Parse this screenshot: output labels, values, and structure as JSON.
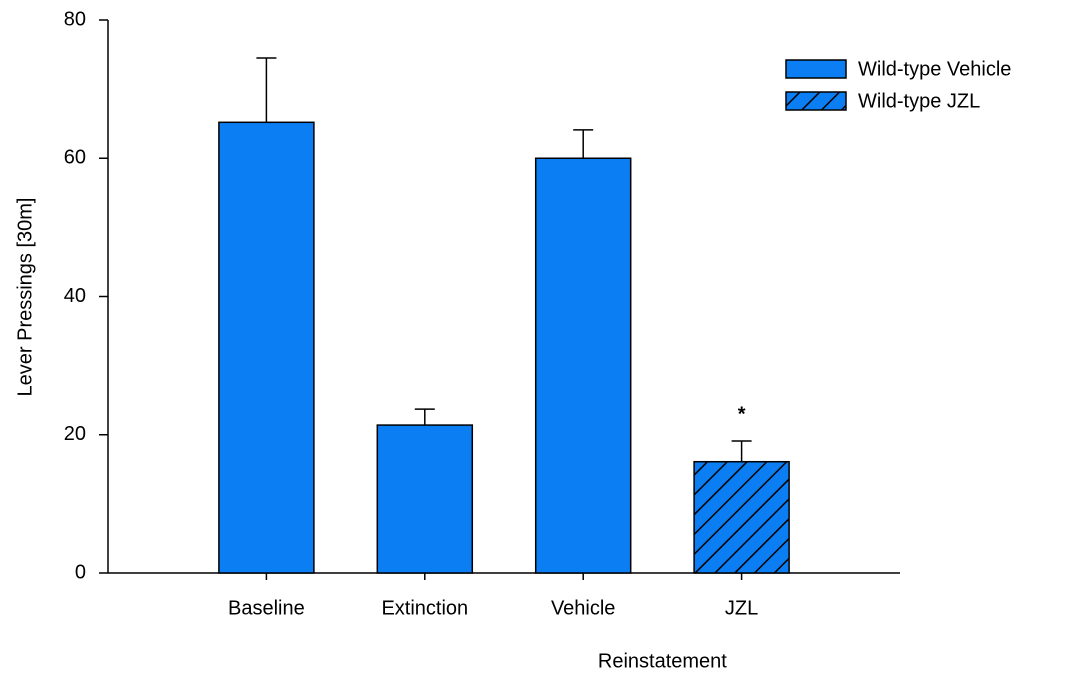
{
  "chart_data": {
    "type": "bar",
    "ylabel": "Lever Pressings [30m]",
    "xlabel": "Reinstatement",
    "categories": [
      "Baseline",
      "Extinction",
      "Vehicle",
      "JZL"
    ],
    "series": [
      {
        "name": "Wild-type Vehicle",
        "color": "#0a7ef2",
        "pattern": "solid",
        "values": [
          65.2,
          21.4,
          60.0,
          null
        ],
        "errors": [
          9.3,
          2.3,
          4.1,
          null
        ]
      },
      {
        "name": "Wild-type JZL",
        "color": "#0a7ef2",
        "pattern": "hatch",
        "values": [
          null,
          null,
          null,
          16.1
        ],
        "errors": [
          null,
          null,
          null,
          3.0
        ]
      }
    ],
    "annotations": [
      "*"
    ],
    "ylim": [
      0,
      80
    ],
    "yticks": [
      0,
      20,
      40,
      60,
      80
    ],
    "grid": false,
    "legend": "top-right"
  }
}
